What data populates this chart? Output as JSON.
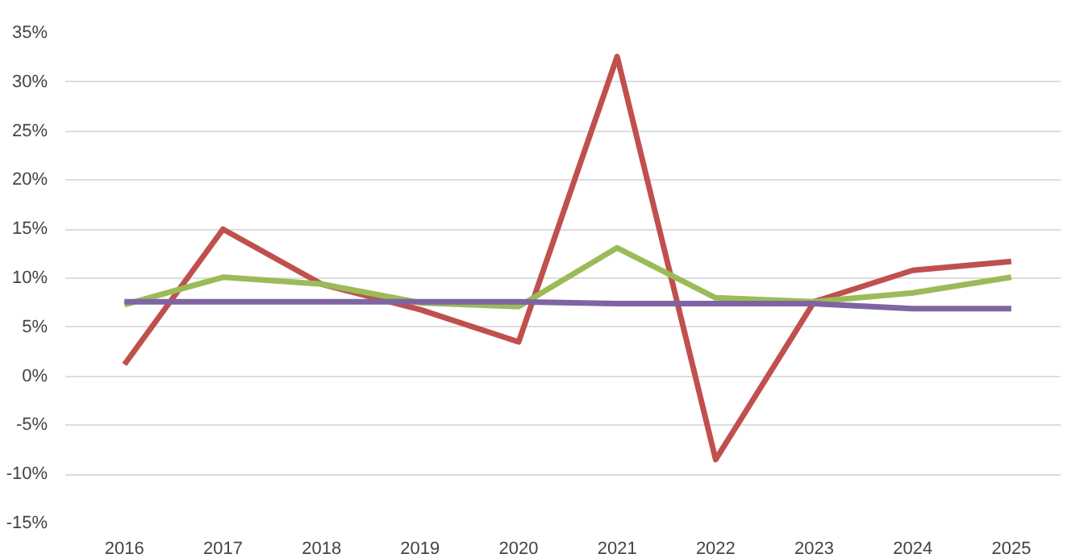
{
  "chart_data": {
    "type": "line",
    "categories": [
      "2016",
      "2017",
      "2018",
      "2019",
      "2020",
      "2021",
      "2022",
      "2023",
      "2024",
      "2025"
    ],
    "series": [
      {
        "color": "#c0504d",
        "values": [
          1.2,
          15.0,
          9.4,
          6.8,
          3.5,
          32.6,
          -8.5,
          7.6,
          10.8,
          11.7
        ]
      },
      {
        "color": "#9bbb59",
        "values": [
          7.3,
          10.1,
          9.4,
          7.5,
          7.1,
          13.1,
          8.0,
          7.6,
          8.5,
          10.1
        ]
      },
      {
        "color": "#8064a2",
        "values": [
          7.6,
          7.6,
          7.6,
          7.6,
          7.6,
          7.4,
          7.4,
          7.4,
          6.9,
          6.9
        ]
      }
    ],
    "ylim": [
      -15,
      35
    ],
    "yticks": [
      {
        "value": -15,
        "label": "-15%"
      },
      {
        "value": -10,
        "label": "-10%"
      },
      {
        "value": -5,
        "label": "-5%"
      },
      {
        "value": 0,
        "label": "0%"
      },
      {
        "value": 5,
        "label": "5%"
      },
      {
        "value": 10,
        "label": "10%"
      },
      {
        "value": 15,
        "label": "15%"
      },
      {
        "value": 20,
        "label": "20%"
      },
      {
        "value": 25,
        "label": "25%"
      },
      {
        "value": 30,
        "label": "30%"
      },
      {
        "value": 35,
        "label": "35%"
      }
    ],
    "grid": "y",
    "marker": "none",
    "line_style": "solid"
  }
}
